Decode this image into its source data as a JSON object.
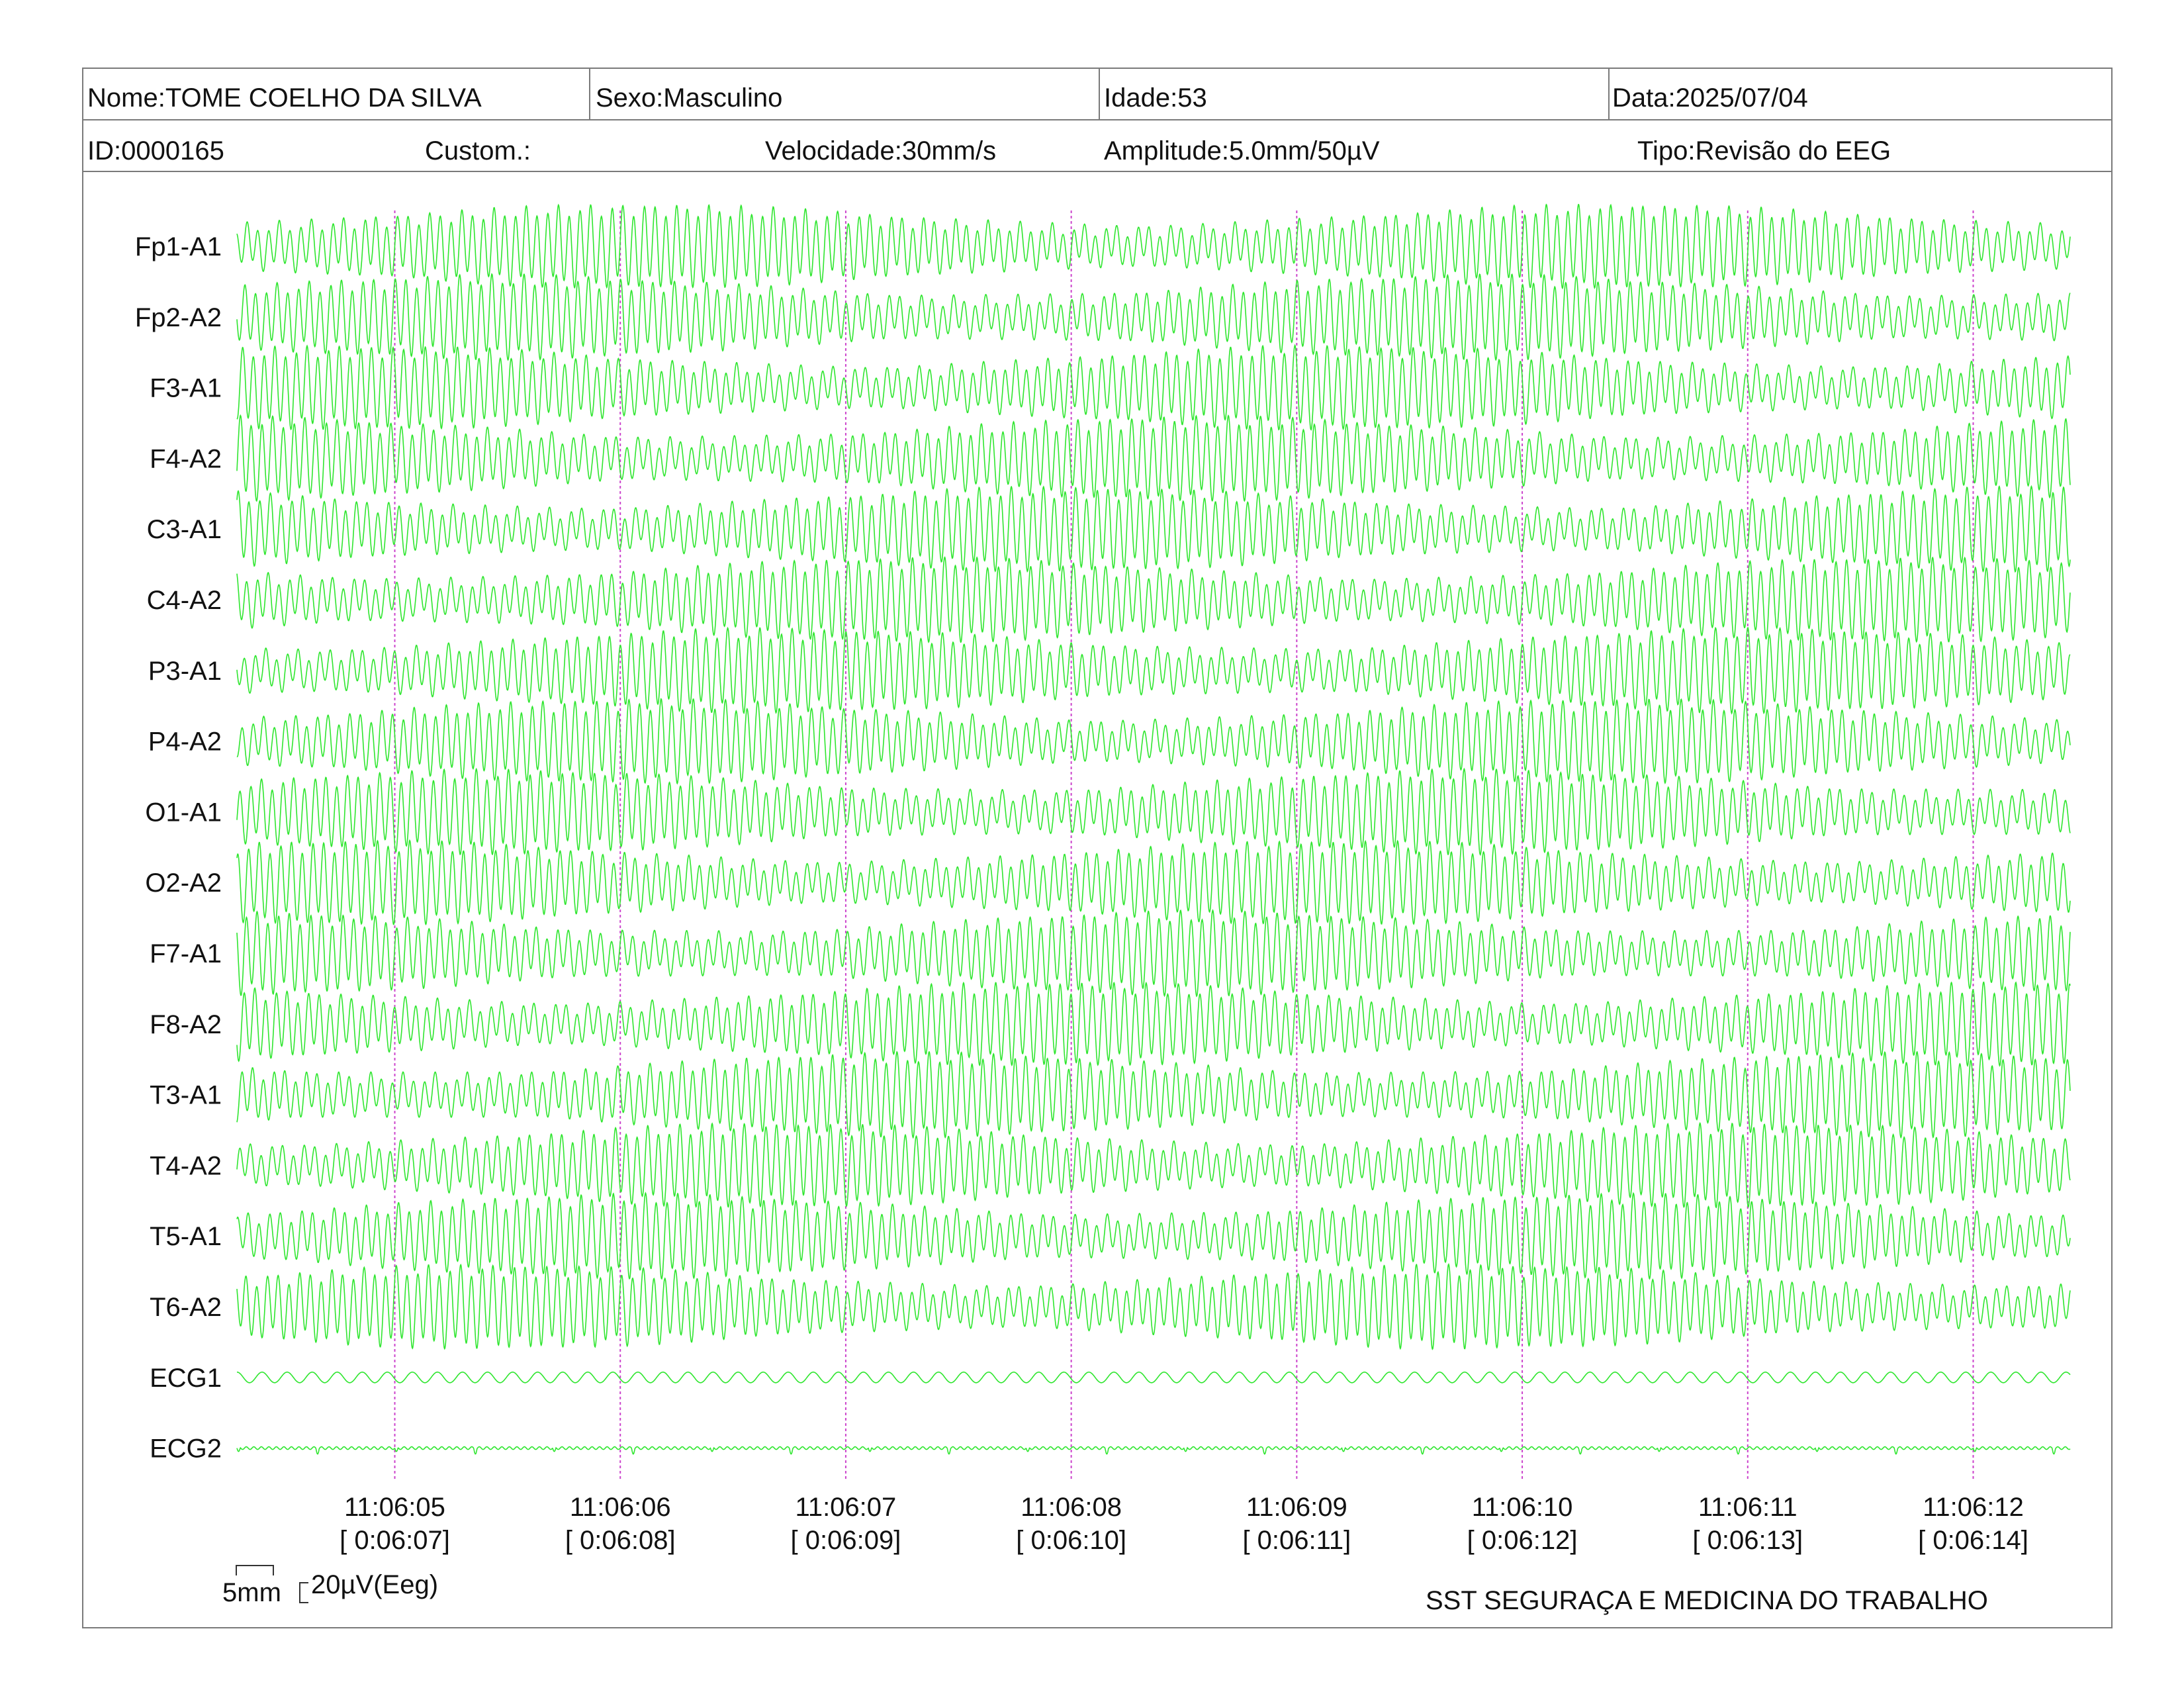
{
  "header": {
    "nome": "Nome:TOME COELHO DA SILVA",
    "sexo": "Sexo:Masculino",
    "idade": "Idade:53",
    "data": "Data:2025/07/04",
    "id": "ID:0000165",
    "custom": "Custom.:",
    "velocidade": "Velocidade:30mm/s",
    "amplitude": "Amplitude:5.0mm/50µV",
    "tipo": "Tipo:Revisão do EEG"
  },
  "footer": {
    "scale_5mm": "5mm",
    "scale_uv": "20µV(Eeg)",
    "organization": "SST SEGURAÇA E MEDICINA DO TRABALHO"
  },
  "colors": {
    "trace": "#2fe62f",
    "time_marker": "#cc44cc",
    "border": "#7a7a7a"
  },
  "chart_data": {
    "type": "line",
    "channels": [
      "Fp1-A1",
      "Fp2-A2",
      "F3-A1",
      "F4-A2",
      "C3-A1",
      "C4-A2",
      "P3-A1",
      "P4-A2",
      "O1-A1",
      "O2-A2",
      "F7-A1",
      "F8-A2",
      "T3-A1",
      "T4-A2",
      "T5-A1",
      "T6-A2",
      "ECG1",
      "ECG2"
    ],
    "time_labels": [
      "11:06:05",
      "11:06:06",
      "11:06:07",
      "11:06:08",
      "11:06:09",
      "11:06:10",
      "11:06:11",
      "11:06:12"
    ],
    "elapsed_labels": [
      "[ 0:06:07]",
      "[ 0:06:08]",
      "[ 0:06:09]",
      "[ 0:06:10]",
      "[ 0:06:11]",
      "[ 0:06:12]",
      "[ 0:06:13]",
      "[ 0:06:14]"
    ],
    "x_range_seconds": [
      -0.7,
      7.43
    ],
    "eeg_frequency_hz": 21,
    "ecg1_frequency_hz": 9,
    "ecg2_beat_period_s": 0.35
  }
}
